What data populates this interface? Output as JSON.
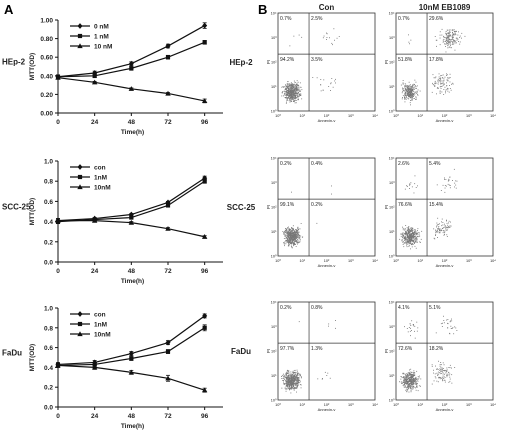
{
  "panels": {
    "a": "A",
    "b": "B"
  },
  "chart_data": [
    {
      "type": "line",
      "title": "",
      "row_label": "HEp-2",
      "xlabel": "Time(h)",
      "ylabel": "MTT(OD)",
      "x": [
        0,
        24,
        48,
        72,
        96
      ],
      "x_ticks": [
        "0",
        "24",
        "48",
        "72",
        "96"
      ],
      "xlim": [
        0,
        108
      ],
      "ylim": [
        0.0,
        1.0
      ],
      "y_ticks": [
        "0.00",
        "0.20",
        "0.40",
        "0.60",
        "0.80",
        "1.00"
      ],
      "legend_position": "top-left",
      "series": [
        {
          "name": "0 nM",
          "marker": "diamond",
          "values": [
            0.39,
            0.43,
            0.53,
            0.72,
            0.94
          ],
          "errors": [
            0.02,
            0.02,
            0.02,
            0.02,
            0.03
          ]
        },
        {
          "name": "1 nM",
          "marker": "square",
          "values": [
            0.39,
            0.4,
            0.48,
            0.6,
            0.76
          ],
          "errors": [
            0.02,
            0.02,
            0.02,
            0.02,
            0.02
          ]
        },
        {
          "name": "10 nM",
          "marker": "triangle",
          "values": [
            0.38,
            0.33,
            0.26,
            0.21,
            0.13
          ],
          "errors": [
            0.01,
            0.01,
            0.01,
            0.01,
            0.02
          ]
        }
      ]
    },
    {
      "type": "line",
      "title": "",
      "row_label": "SCC-25",
      "xlabel": "Time(h)",
      "ylabel": "MTT(OD)",
      "x": [
        0,
        24,
        48,
        72,
        96
      ],
      "x_ticks": [
        "0",
        "24",
        "48",
        "72",
        "96"
      ],
      "xlim": [
        0,
        108
      ],
      "ylim": [
        0.0,
        1.0
      ],
      "y_ticks": [
        "0.0",
        "0.2",
        "0.4",
        "0.6",
        "0.8",
        "1.0"
      ],
      "legend_position": "top-left",
      "series": [
        {
          "name": "con",
          "marker": "diamond",
          "values": [
            0.41,
            0.43,
            0.47,
            0.59,
            0.83
          ],
          "errors": [
            0.02,
            0.01,
            0.01,
            0.01,
            0.02
          ]
        },
        {
          "name": "1nM",
          "marker": "square",
          "values": [
            0.4,
            0.42,
            0.44,
            0.56,
            0.8
          ],
          "errors": [
            0.02,
            0.01,
            0.01,
            0.01,
            0.02
          ]
        },
        {
          "name": "10nM",
          "marker": "triangle",
          "values": [
            0.41,
            0.41,
            0.39,
            0.33,
            0.25
          ],
          "errors": [
            0.02,
            0.01,
            0.01,
            0.01,
            0.01
          ]
        }
      ]
    },
    {
      "type": "line",
      "title": "",
      "row_label": "FaDu",
      "xlabel": "Time(h)",
      "ylabel": "MTT(OD)",
      "x": [
        0,
        24,
        48,
        72,
        96
      ],
      "x_ticks": [
        "0",
        "24",
        "48",
        "72",
        "96"
      ],
      "xlim": [
        0,
        108
      ],
      "ylim": [
        0.0,
        1.0
      ],
      "y_ticks": [
        "0.0",
        "0.2",
        "0.4",
        "0.6",
        "0.8",
        "1.0"
      ],
      "legend_position": "top-left",
      "series": [
        {
          "name": "con",
          "marker": "diamond",
          "values": [
            0.43,
            0.45,
            0.54,
            0.65,
            0.92
          ],
          "errors": [
            0.02,
            0.02,
            0.02,
            0.02,
            0.02
          ]
        },
        {
          "name": "1nM",
          "marker": "square",
          "values": [
            0.42,
            0.43,
            0.49,
            0.56,
            0.8
          ],
          "errors": [
            0.02,
            0.02,
            0.02,
            0.02,
            0.03
          ]
        },
        {
          "name": "10nM",
          "marker": "triangle",
          "values": [
            0.42,
            0.4,
            0.35,
            0.29,
            0.17
          ],
          "errors": [
            0.02,
            0.02,
            0.02,
            0.03,
            0.02
          ]
        }
      ]
    },
    {
      "type": "scatter",
      "title": "",
      "column_labels": [
        "Con",
        "10nM EB1089"
      ],
      "row_labels": [
        "HEp-2",
        "SCC-25",
        "FaDu"
      ],
      "xlabel": "Annexin-v",
      "ylabel": "PI",
      "axis_scale": "log",
      "xlim": [
        1,
        10000
      ],
      "ylim": [
        1,
        10000
      ],
      "tick_labels": [
        "10⁰",
        "10¹",
        "10²",
        "10³",
        "10⁴"
      ],
      "quadrant_percentages": [
        {
          "row": "HEp-2",
          "condition": "Con",
          "upper_left": "0.7%",
          "upper_right": "2.5%",
          "lower_left": "94.2%",
          "lower_right": "3.5%"
        },
        {
          "row": "HEp-2",
          "condition": "10nM EB1089",
          "upper_left": "0.7%",
          "upper_right": "29.6%",
          "lower_left": "51.8%",
          "lower_right": "17.8%"
        },
        {
          "row": "SCC-25",
          "condition": "Con",
          "upper_left": "0.2%",
          "upper_right": "0.4%",
          "lower_left": "99.1%",
          "lower_right": "0.2%"
        },
        {
          "row": "SCC-25",
          "condition": "10nM EB1089",
          "upper_left": "2.6%",
          "upper_right": "5.4%",
          "lower_left": "76.6%",
          "lower_right": "15.4%"
        },
        {
          "row": "FaDu",
          "condition": "Con",
          "upper_left": "0.2%",
          "upper_right": "0.8%",
          "lower_left": "97.7%",
          "lower_right": "1.3%"
        },
        {
          "row": "FaDu",
          "condition": "10nM EB1089",
          "upper_left": "4.1%",
          "upper_right": "5.1%",
          "lower_left": "72.6%",
          "lower_right": "18.2%"
        }
      ]
    }
  ]
}
